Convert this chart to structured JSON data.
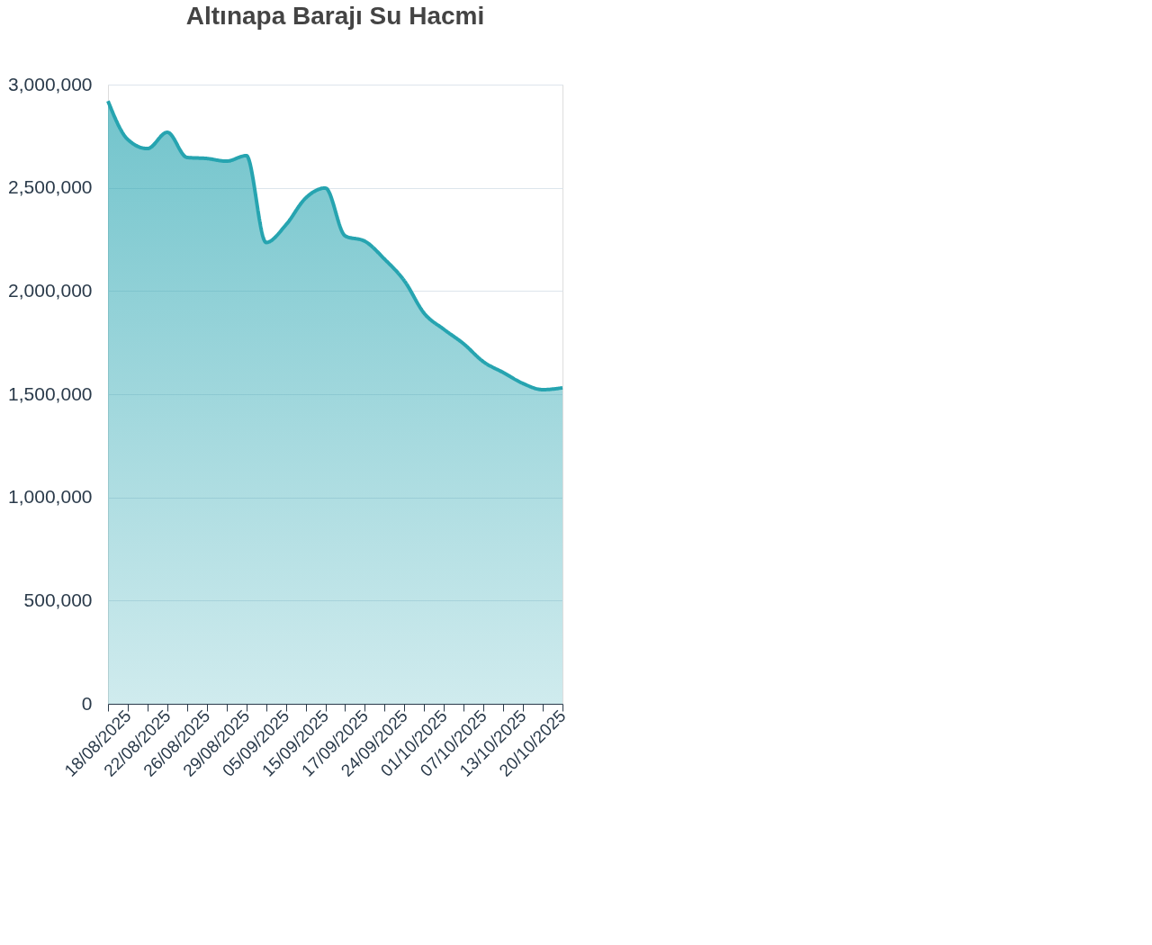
{
  "chart_data": {
    "type": "area",
    "title": "Altınapa Barajı Su Hacmi",
    "categories": [
      null,
      "18/08/2025",
      null,
      "22/08/2025",
      null,
      "26/08/2025",
      null,
      "29/08/2025",
      null,
      "05/09/2025",
      null,
      "15/09/2025",
      null,
      "17/09/2025",
      null,
      "24/09/2025",
      null,
      "01/10/2025",
      null,
      "07/10/2025",
      null,
      "13/10/2025",
      null,
      "20/10/2025"
    ],
    "series": [
      {
        "color": "#26a4b0",
        "values": [
          2920000,
          2734000,
          2690000,
          2769000,
          2647000,
          2642000,
          2629000,
          2656000,
          2235000,
          2320000,
          2450000,
          2499000,
          2267000,
          2241000,
          2154000,
          2049000,
          1892000,
          1814000,
          1744000,
          1657000,
          1605000,
          1552000,
          1522000,
          1531000
        ]
      }
    ],
    "ylim": [
      0,
      3000000
    ],
    "yticks": [
      0,
      {
        "value": 500000,
        "label": "500,000"
      },
      {
        "value": 1000000,
        "label": "1,000,000"
      },
      {
        "value": 1500000,
        "label": "1,500,000"
      },
      {
        "value": 2000000,
        "label": "2,000,000"
      },
      {
        "value": 2500000,
        "label": "2,500,000"
      },
      {
        "value": 3000000,
        "label": "3,000,000"
      }
    ],
    "grid": "y",
    "marker": "none",
    "line_style": "solid"
  }
}
